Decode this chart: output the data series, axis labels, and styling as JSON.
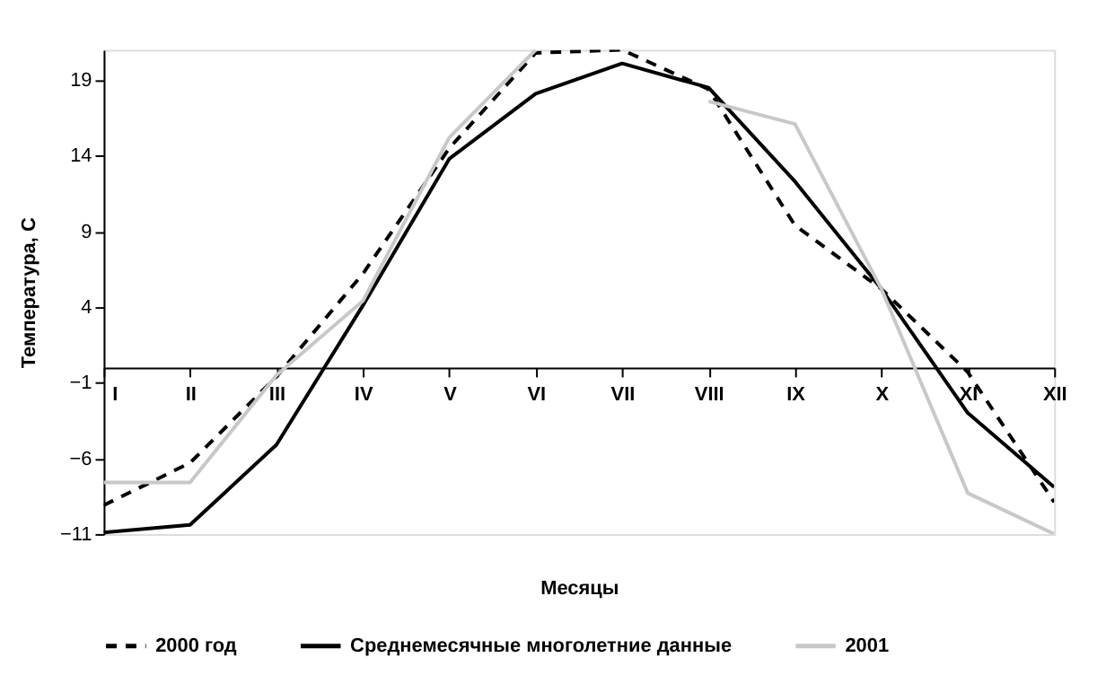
{
  "chart_data": {
    "type": "line",
    "xlabel": "Месяцы",
    "ylabel": "Температура, С",
    "categories": [
      "I",
      "II",
      "III",
      "IV",
      "V",
      "VI",
      "VII",
      "VIII",
      "IX",
      "X",
      "XI",
      "XII"
    ],
    "series": [
      {
        "name": "2000 год",
        "color": "#000000",
        "line_style": "dashed",
        "values": [
          -9.1,
          -6.3,
          -0.6,
          6.2,
          14.5,
          20.8,
          21.0,
          18.4,
          9.4,
          5.2,
          -0.3,
          -8.9
        ]
      },
      {
        "name": "Среднемесячные многолетние данные",
        "color": "#000000",
        "line_style": "solid",
        "values": [
          -10.9,
          -10.4,
          -5.1,
          4.1,
          13.8,
          18.1,
          20.1,
          18.5,
          12.3,
          5.2,
          -3.0,
          -7.9
        ]
      },
      {
        "name": "2001",
        "color": "#c8c8c8",
        "line_style": "solid",
        "values": [
          -7.6,
          -7.6,
          -0.5,
          4.4,
          15.2,
          21.0,
          null,
          17.6,
          16.1,
          5.2,
          -8.3,
          -11.0
        ]
      }
    ],
    "ylim": [
      -11,
      21
    ],
    "yticks": [
      -11,
      -6,
      -1,
      4,
      9,
      14,
      19
    ],
    "grid": false,
    "legend": "bottom",
    "marker": "none"
  }
}
